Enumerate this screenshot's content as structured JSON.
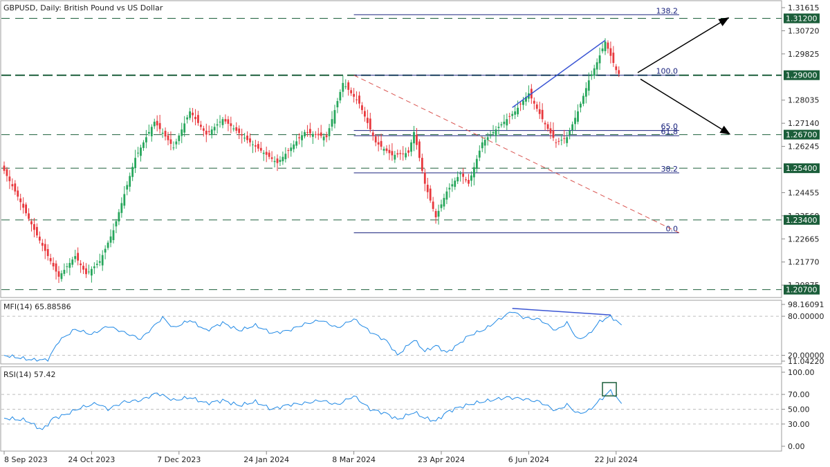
{
  "window": {
    "title": "GBPUSD, Daily:  British Pound vs US Dollar"
  },
  "colors": {
    "bull": "#26a65b",
    "bear": "#e8383d",
    "level_line": "#1b5e3a",
    "level_label_bg": "#1b5e3a",
    "fib_line": "#1a237e",
    "trend_blue": "#3a55d4",
    "diag_red": "#d9534f",
    "indicator": "#1e88e5",
    "arrow": "#000000"
  },
  "chart_data": [
    {
      "type": "candlestick",
      "title": "GBPUSD, Daily:  British Pound vs US Dollar",
      "x_ticks": [
        "8 Sep 2023",
        "24 Oct 2023",
        "7 Dec 2023",
        "24 Jan 2024",
        "8 Mar 2024",
        "23 Apr 2024",
        "6 Jun 2024",
        "22 Jul 2024"
      ],
      "y_ticks": [
        "1.31615",
        "1.30720",
        "1.29825",
        "1.28035",
        "1.27140",
        "1.26245",
        "1.24455",
        "1.23560",
        "1.22665",
        "1.21770",
        "1.20875"
      ],
      "ylim": [
        1.2045,
        1.3175
      ],
      "close_anchors": [
        [
          0,
          1.253
        ],
        [
          5,
          1.243
        ],
        [
          12,
          1.228
        ],
        [
          20,
          1.212
        ],
        [
          26,
          1.22
        ],
        [
          30,
          1.213
        ],
        [
          35,
          1.218
        ],
        [
          40,
          1.23
        ],
        [
          48,
          1.258
        ],
        [
          55,
          1.272
        ],
        [
          62,
          1.262
        ],
        [
          68,
          1.276
        ],
        [
          74,
          1.267
        ],
        [
          80,
          1.273
        ],
        [
          90,
          1.264
        ],
        [
          100,
          1.256
        ],
        [
          110,
          1.268
        ],
        [
          118,
          1.266
        ],
        [
          124,
          1.287
        ],
        [
          130,
          1.279
        ],
        [
          136,
          1.264
        ],
        [
          142,
          1.259
        ],
        [
          148,
          1.26
        ],
        [
          150,
          1.268
        ],
        [
          154,
          1.248
        ],
        [
          158,
          1.235
        ],
        [
          162,
          1.245
        ],
        [
          167,
          1.252
        ],
        [
          170,
          1.248
        ],
        [
          175,
          1.264
        ],
        [
          181,
          1.27
        ],
        [
          187,
          1.276
        ],
        [
          192,
          1.283
        ],
        [
          198,
          1.271
        ],
        [
          202,
          1.264
        ],
        [
          206,
          1.266
        ],
        [
          210,
          1.276
        ],
        [
          214,
          1.288
        ],
        [
          217,
          1.295
        ],
        [
          220,
          1.303
        ],
        [
          224,
          1.292
        ],
        [
          225,
          1.2905
        ]
      ],
      "levels": [
        "1.31200",
        "1.29000",
        "1.26700",
        "1.25400",
        "1.23400",
        "1.20700"
      ],
      "fibonacci": [
        {
          "label": "138.2",
          "value": 1.3134
        },
        {
          "label": "100.0",
          "value": 1.29
        },
        {
          "label": "65.0",
          "value": 1.2686
        },
        {
          "label": "61.8",
          "value": 1.2666
        },
        {
          "label": "38.2",
          "value": 1.2522
        },
        {
          "label": "0.0",
          "value": 1.229
        }
      ]
    },
    {
      "type": "line",
      "title": "MFI(14) 65.88586",
      "y_ticks": [
        "98.16091",
        "80.00000",
        "20.00000",
        "11.04220"
      ],
      "ylim": [
        11.0422,
        98.1609
      ],
      "anchors": [
        [
          0,
          20
        ],
        [
          10,
          13
        ],
        [
          16,
          13
        ],
        [
          20,
          42
        ],
        [
          26,
          60
        ],
        [
          32,
          52
        ],
        [
          38,
          65
        ],
        [
          44,
          55
        ],
        [
          50,
          45
        ],
        [
          58,
          78
        ],
        [
          62,
          62
        ],
        [
          68,
          74
        ],
        [
          74,
          58
        ],
        [
          80,
          70
        ],
        [
          86,
          58
        ],
        [
          92,
          66
        ],
        [
          98,
          54
        ],
        [
          104,
          58
        ],
        [
          110,
          68
        ],
        [
          116,
          74
        ],
        [
          122,
          62
        ],
        [
          128,
          76
        ],
        [
          134,
          56
        ],
        [
          140,
          42
        ],
        [
          144,
          20
        ],
        [
          150,
          44
        ],
        [
          154,
          26
        ],
        [
          158,
          35
        ],
        [
          162,
          24
        ],
        [
          166,
          36
        ],
        [
          170,
          50
        ],
        [
          176,
          60
        ],
        [
          180,
          72
        ],
        [
          186,
          88
        ],
        [
          190,
          78
        ],
        [
          196,
          75
        ],
        [
          202,
          58
        ],
        [
          206,
          70
        ],
        [
          210,
          44
        ],
        [
          214,
          52
        ],
        [
          218,
          72
        ],
        [
          222,
          80
        ],
        [
          226,
          66
        ]
      ]
    },
    {
      "type": "line",
      "title": "RSI(14) 57.42",
      "y_ticks": [
        "100.00",
        "70.00",
        "50.00",
        "30.00",
        "0.00"
      ],
      "ylim": [
        0,
        100
      ],
      "anchors": [
        [
          0,
          38
        ],
        [
          8,
          35
        ],
        [
          14,
          22
        ],
        [
          18,
          38
        ],
        [
          22,
          42
        ],
        [
          28,
          52
        ],
        [
          34,
          58
        ],
        [
          38,
          50
        ],
        [
          44,
          60
        ],
        [
          50,
          62
        ],
        [
          56,
          72
        ],
        [
          62,
          62
        ],
        [
          68,
          66
        ],
        [
          74,
          58
        ],
        [
          80,
          62
        ],
        [
          86,
          55
        ],
        [
          92,
          60
        ],
        [
          98,
          50
        ],
        [
          104,
          56
        ],
        [
          110,
          58
        ],
        [
          116,
          62
        ],
        [
          122,
          56
        ],
        [
          128,
          68
        ],
        [
          134,
          50
        ],
        [
          140,
          44
        ],
        [
          144,
          36
        ],
        [
          150,
          46
        ],
        [
          154,
          38
        ],
        [
          158,
          34
        ],
        [
          162,
          46
        ],
        [
          166,
          52
        ],
        [
          172,
          58
        ],
        [
          178,
          62
        ],
        [
          184,
          66
        ],
        [
          190,
          64
        ],
        [
          196,
          60
        ],
        [
          202,
          48
        ],
        [
          206,
          56
        ],
        [
          210,
          44
        ],
        [
          214,
          48
        ],
        [
          218,
          62
        ],
        [
          222,
          75
        ],
        [
          226,
          57
        ]
      ]
    }
  ]
}
